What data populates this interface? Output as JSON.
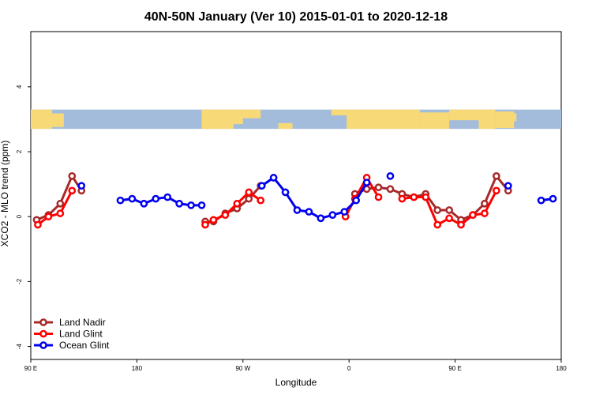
{
  "chart_data": {
    "type": "line",
    "title": "40N-50N January (Ver 10)   2015-01-01 to 2020-12-18",
    "xlabel": "Longitude",
    "ylabel": "XCO2 - MLO trend (ppm)",
    "xlim": [
      90,
      540
    ],
    "ylim": [
      -4.4,
      5.7
    ],
    "x_ticks": [
      {
        "value": 90,
        "label": "90 E"
      },
      {
        "value": 180,
        "label": "180"
      },
      {
        "value": 270,
        "label": "90 W"
      },
      {
        "value": 360,
        "label": "0"
      },
      {
        "value": 450,
        "label": "90 E"
      },
      {
        "value": 540,
        "label": "180"
      }
    ],
    "y_ticks": [
      {
        "value": -4,
        "label": "-4"
      },
      {
        "value": -2,
        "label": "-2"
      },
      {
        "value": 0,
        "label": "0"
      },
      {
        "value": 2,
        "label": "2"
      },
      {
        "value": 4,
        "label": "4"
      }
    ],
    "map_strip": {
      "y_range": [
        2.7,
        3.3
      ],
      "ocean_color": "#a4bcdc",
      "land_color": "#f7d978"
    },
    "legend_position": "bottom-left",
    "series": [
      {
        "name": "Land Nadir",
        "color": "#a52a2a",
        "points": [
          [
            95,
            -0.1
          ],
          [
            105,
            0.05
          ],
          [
            115,
            0.4
          ],
          [
            125,
            1.25
          ],
          [
            133,
            0.8
          ],
          [
            null,
            null
          ],
          [
            238,
            -0.15
          ],
          [
            245,
            -0.15
          ],
          [
            255,
            0.1
          ],
          [
            265,
            0.25
          ],
          [
            275,
            0.55
          ],
          [
            285,
            0.95
          ],
          [
            null,
            null
          ],
          [
            365,
            0.7
          ],
          [
            375,
            0.85
          ],
          [
            385,
            0.9
          ],
          [
            395,
            0.85
          ],
          [
            405,
            0.7
          ],
          [
            415,
            0.6
          ],
          [
            425,
            0.7
          ],
          [
            435,
            0.2
          ],
          [
            445,
            0.2
          ],
          [
            455,
            -0.1
          ],
          [
            465,
            0.05
          ],
          [
            475,
            0.4
          ],
          [
            485,
            1.25
          ],
          [
            495,
            0.8
          ]
        ]
      },
      {
        "name": "Land Glint",
        "color": "#ff0000",
        "points": [
          [
            96,
            -0.25
          ],
          [
            105,
            0.0
          ],
          [
            115,
            0.1
          ],
          [
            125,
            0.8
          ],
          [
            null,
            null
          ],
          [
            238,
            -0.25
          ],
          [
            245,
            -0.1
          ],
          [
            255,
            0.05
          ],
          [
            265,
            0.4
          ],
          [
            275,
            0.75
          ],
          [
            285,
            0.5
          ],
          [
            null,
            null
          ],
          [
            357,
            0.0
          ],
          [
            365,
            0.55
          ],
          [
            375,
            1.2
          ],
          [
            385,
            0.6
          ],
          [
            null,
            null
          ],
          [
            405,
            0.55
          ],
          [
            415,
            0.6
          ],
          [
            425,
            0.6
          ],
          [
            435,
            -0.25
          ],
          [
            445,
            -0.05
          ],
          [
            455,
            -0.25
          ],
          [
            465,
            0.05
          ],
          [
            475,
            0.1
          ],
          [
            485,
            0.8
          ]
        ]
      },
      {
        "name": "Ocean Glint",
        "color": "#0000ee",
        "points": [
          [
            133,
            0.95
          ],
          [
            null,
            null
          ],
          [
            166,
            0.5
          ],
          [
            176,
            0.55
          ],
          [
            186,
            0.4
          ],
          [
            196,
            0.55
          ],
          [
            206,
            0.6
          ],
          [
            216,
            0.4
          ],
          [
            226,
            0.35
          ],
          [
            235,
            0.35
          ],
          [
            null,
            null
          ],
          [
            286,
            0.95
          ],
          [
            296,
            1.2
          ],
          [
            306,
            0.75
          ],
          [
            316,
            0.2
          ],
          [
            326,
            0.15
          ],
          [
            336,
            -0.05
          ],
          [
            346,
            0.05
          ],
          [
            356,
            0.15
          ],
          [
            366,
            0.5
          ],
          [
            375,
            1.05
          ],
          [
            null,
            null
          ],
          [
            395,
            1.25
          ],
          [
            null,
            null
          ],
          [
            495,
            0.95
          ],
          [
            null,
            null
          ],
          [
            523,
            0.5
          ],
          [
            533,
            0.55
          ]
        ]
      }
    ]
  }
}
